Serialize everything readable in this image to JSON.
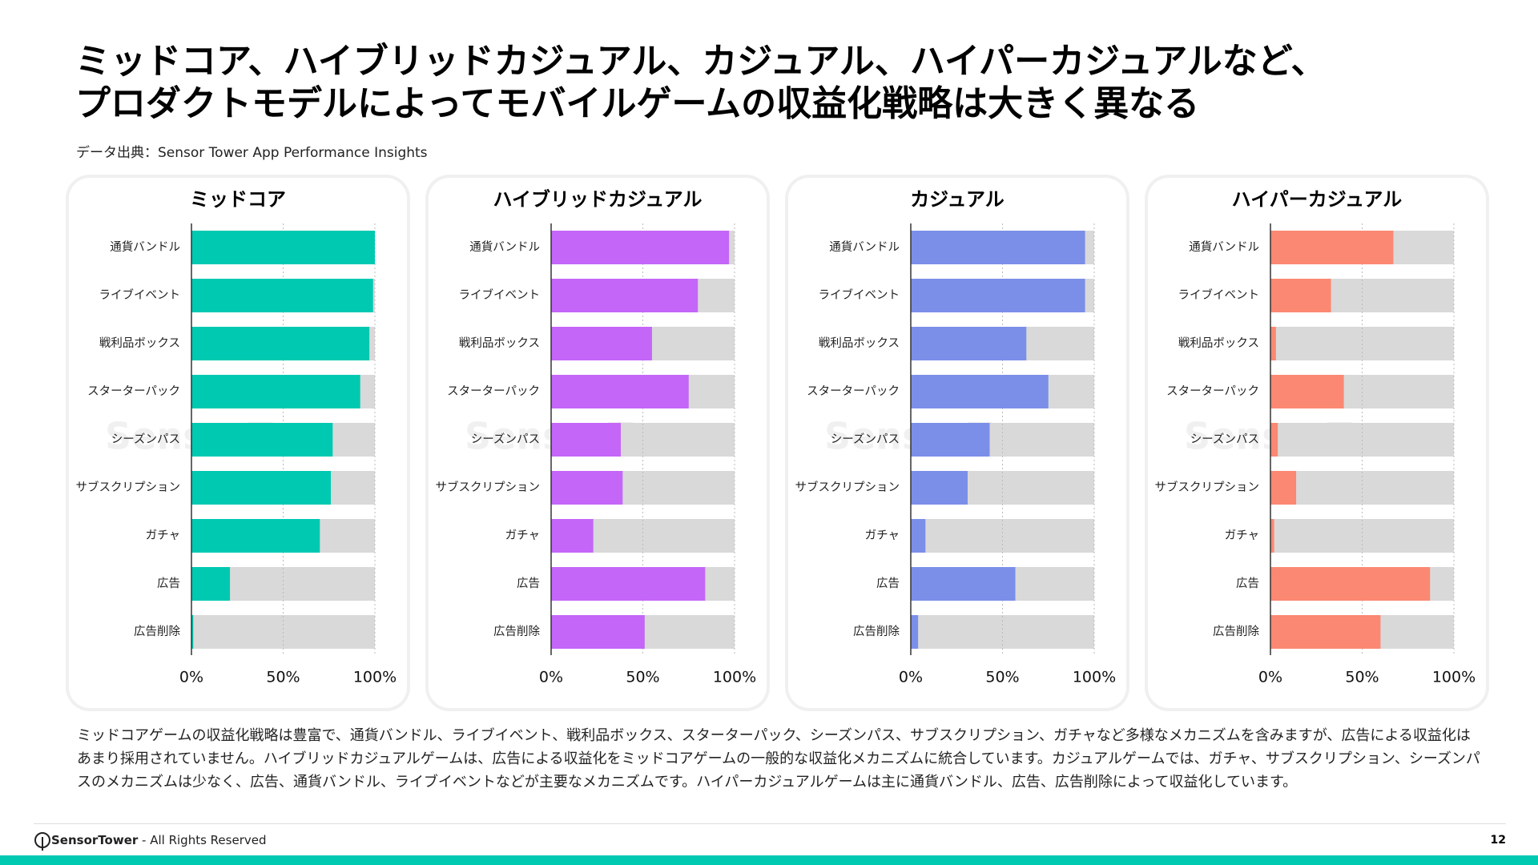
{
  "title": [
    "ミッドコア、ハイブリッドカジュアル、カジュアル、ハイパーカジュアルなど、",
    "プロダクトモデルによってモバイルゲームの収益化戦略は大きく異なる"
  ],
  "source": "データ出典：Sensor Tower App Performance Insights",
  "watermark": "SensorTower",
  "chart_data": [
    {
      "type": "bar",
      "orientation": "horizontal",
      "title": "ミッドコア",
      "color": "#00c9b1",
      "track_color": "#d9d9d9",
      "grid": true,
      "categories": [
        "通貨バンドル",
        "ライブイベント",
        "戦利品ボックス",
        "スターターパック",
        "シーズンパス",
        "サブスクリプション",
        "ガチャ",
        "広告",
        "広告削除"
      ],
      "values": [
        100,
        99,
        97,
        92,
        77,
        76,
        70,
        21,
        1
      ],
      "xlim": [
        0,
        100
      ],
      "xticks": [
        {
          "value": 0,
          "label": "0%"
        },
        {
          "value": 50,
          "label": "50%"
        },
        {
          "value": 100,
          "label": "100%"
        }
      ]
    },
    {
      "type": "bar",
      "orientation": "horizontal",
      "title": "ハイブリッドカジュアル",
      "color": "#c466f7",
      "track_color": "#d9d9d9",
      "grid": true,
      "categories": [
        "通貨バンドル",
        "ライブイベント",
        "戦利品ボックス",
        "スターターパック",
        "シーズンパス",
        "サブスクリプション",
        "ガチャ",
        "広告",
        "広告削除"
      ],
      "values": [
        97,
        80,
        55,
        75,
        38,
        39,
        23,
        84,
        51
      ],
      "xlim": [
        0,
        100
      ],
      "xticks": [
        {
          "value": 0,
          "label": "0%"
        },
        {
          "value": 50,
          "label": "50%"
        },
        {
          "value": 100,
          "label": "100%"
        }
      ]
    },
    {
      "type": "bar",
      "orientation": "horizontal",
      "title": "カジュアル",
      "color": "#7b8fe8",
      "track_color": "#d9d9d9",
      "grid": true,
      "categories": [
        "通貨バンドル",
        "ライブイベント",
        "戦利品ボックス",
        "スターターパック",
        "シーズンパス",
        "サブスクリプション",
        "ガチャ",
        "広告",
        "広告削除"
      ],
      "values": [
        95,
        95,
        63,
        75,
        43,
        31,
        8,
        57,
        4
      ],
      "xlim": [
        0,
        100
      ],
      "xticks": [
        {
          "value": 0,
          "label": "0%"
        },
        {
          "value": 50,
          "label": "50%"
        },
        {
          "value": 100,
          "label": "100%"
        }
      ]
    },
    {
      "type": "bar",
      "orientation": "horizontal",
      "title": "ハイパーカジュアル",
      "color": "#fb8872",
      "track_color": "#d9d9d9",
      "grid": true,
      "categories": [
        "通貨バンドル",
        "ライブイベント",
        "戦利品ボックス",
        "スターターパック",
        "シーズンパス",
        "サブスクリプション",
        "ガチャ",
        "広告",
        "広告削除"
      ],
      "values": [
        67,
        33,
        3,
        40,
        4,
        14,
        2,
        87,
        60
      ],
      "xlim": [
        0,
        100
      ],
      "xticks": [
        {
          "value": 0,
          "label": "0%"
        },
        {
          "value": 50,
          "label": "50%"
        },
        {
          "value": 100,
          "label": "100%"
        }
      ]
    }
  ],
  "description": "ミッドコアゲームの収益化戦略は豊富で、通貨バンドル、ライブイベント、戦利品ボックス、スターターパック、シーズンパス、サブスクリプション、ガチャなど多様なメカニズムを含みますが、広告による収益化はあまり採用されていません。ハイブリッドカジュアルゲームは、広告による収益化をミッドコアゲームの一般的な収益化メカニズムに統合しています。カジュアルゲームでは、ガチャ、サブスクリプション、シーズンパスのメカニズムは少なく、広告、通貨バンドル、ライブイベントなどが主要なメカニズムです。ハイパーカジュアルゲームは主に通貨バンドル、広告、広告削除によって収益化しています。",
  "footer": {
    "brand": "SensorTower",
    "text": "- All Rights Reserved"
  },
  "page": "12"
}
